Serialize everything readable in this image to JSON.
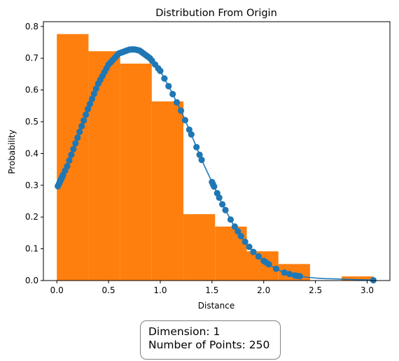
{
  "chart_data": {
    "type": "bar",
    "title": "Distribution From Origin",
    "xlabel": "Distance",
    "ylabel": "Probability",
    "xlim": [
      -0.13,
      3.22
    ],
    "ylim": [
      0,
      0.815
    ],
    "xticks": [
      0.0,
      0.5,
      1.0,
      1.5,
      2.0,
      2.5,
      3.0
    ],
    "yticks": [
      0.0,
      0.1,
      0.2,
      0.3,
      0.4,
      0.5,
      0.6,
      0.7,
      0.8
    ],
    "histogram": {
      "color": "#ff7f0e",
      "bin_edges": [
        0.0,
        0.306,
        0.612,
        0.918,
        1.224,
        1.53,
        1.836,
        2.142,
        2.448,
        2.754,
        3.06
      ],
      "values": [
        0.776,
        0.722,
        0.683,
        0.564,
        0.209,
        0.17,
        0.092,
        0.052,
        0.0,
        0.013
      ]
    },
    "curve": {
      "color": "#1f77b4",
      "type": "line-with-markers",
      "x": [
        0.0,
        0.1,
        0.2,
        0.3,
        0.4,
        0.5,
        0.6,
        0.7,
        0.75,
        0.8,
        0.9,
        1.0,
        1.1,
        1.2,
        1.3,
        1.4,
        1.5,
        1.6,
        1.7,
        1.8,
        1.9,
        2.0,
        2.1,
        2.2,
        2.3,
        2.4,
        2.5,
        2.6,
        2.7,
        2.8,
        2.9,
        3.0,
        3.06
      ],
      "y": [
        0.29,
        0.36,
        0.45,
        0.54,
        0.62,
        0.68,
        0.715,
        0.727,
        0.728,
        0.724,
        0.7,
        0.66,
        0.6,
        0.535,
        0.46,
        0.38,
        0.31,
        0.24,
        0.18,
        0.13,
        0.09,
        0.062,
        0.04,
        0.025,
        0.016,
        0.011,
        0.008,
        0.006,
        0.005,
        0.004,
        0.003,
        0.002,
        0.001
      ],
      "marker_x": [
        0.01,
        0.02,
        0.03,
        0.04,
        0.05,
        0.06,
        0.08,
        0.1,
        0.12,
        0.14,
        0.16,
        0.18,
        0.2,
        0.22,
        0.24,
        0.26,
        0.28,
        0.3,
        0.32,
        0.34,
        0.36,
        0.38,
        0.4,
        0.42,
        0.44,
        0.46,
        0.48,
        0.5,
        0.52,
        0.54,
        0.56,
        0.58,
        0.6,
        0.62,
        0.64,
        0.66,
        0.68,
        0.7,
        0.72,
        0.74,
        0.76,
        0.78,
        0.8,
        0.82,
        0.84,
        0.86,
        0.88,
        0.9,
        0.92,
        0.95,
        0.98,
        1.0,
        1.04,
        1.08,
        1.12,
        1.16,
        1.2,
        1.24,
        1.28,
        1.3,
        1.35,
        1.38,
        1.4,
        1.5,
        1.51,
        1.52,
        1.55,
        1.57,
        1.6,
        1.63,
        1.68,
        1.72,
        1.75,
        1.78,
        1.82,
        1.86,
        1.9,
        1.95,
        2.0,
        2.02,
        2.05,
        2.12,
        2.2,
        2.25,
        2.3,
        2.32,
        2.35,
        3.06
      ]
    }
  },
  "info_box": {
    "dimension": "Dimension: 1",
    "points": "Number of Points: 250"
  }
}
